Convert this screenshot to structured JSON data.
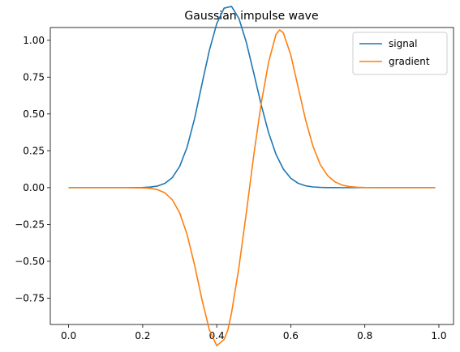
{
  "chart_data": {
    "type": "line",
    "title": "Gaussian impulse wave",
    "xlabel": "",
    "ylabel": "",
    "xlim": [
      -0.0495,
      1.0395
    ],
    "ylim": [
      -0.9288,
      1.0866
    ],
    "xticks": [
      0.0,
      0.2,
      0.4,
      0.6,
      0.8,
      1.0
    ],
    "xtick_labels": [
      "0.0",
      "0.2",
      "0.4",
      "0.6",
      "0.8",
      "1.0"
    ],
    "yticks": [
      1.0,
      0.75,
      0.5,
      0.25,
      0.0,
      -0.25,
      -0.5,
      -0.75
    ],
    "ytick_labels": [
      "1.00",
      "0.75",
      "0.50",
      "0.25",
      "0.00",
      "−0.25",
      "−0.50",
      "−0.75"
    ],
    "grid": false,
    "legend_position": "top-right",
    "series": [
      {
        "name": "signal",
        "color": "#1f77b4",
        "x": [
          0.0,
          0.05,
          0.1,
          0.15,
          0.2,
          0.22,
          0.24,
          0.26,
          0.28,
          0.3,
          0.32,
          0.34,
          0.36,
          0.38,
          0.4,
          0.42,
          0.44,
          0.46,
          0.48,
          0.5,
          0.52,
          0.54,
          0.56,
          0.58,
          0.6,
          0.62,
          0.64,
          0.66,
          0.68,
          0.7,
          0.72,
          0.74,
          0.76,
          0.78,
          0.8,
          0.85,
          0.9,
          0.95,
          0.99
        ],
        "y": [
          0.0,
          0.0,
          0.0,
          0.0,
          0.0011,
          0.0036,
          0.0107,
          0.0285,
          0.068,
          0.1445,
          0.2747,
          0.4666,
          0.701,
          0.9303,
          1.1125,
          1.2182,
          1.2297,
          1.1478,
          0.9856,
          0.7772,
          0.5633,
          0.3734,
          0.2267,
          0.1256,
          0.0636,
          0.0293,
          0.0124,
          0.0048,
          0.0017,
          0.0005,
          0.0002,
          0.0,
          0.0,
          0.0,
          0.0,
          0.0,
          0.0,
          0.0,
          0.0
        ]
      },
      {
        "name": "gradient",
        "color": "#ff7f0e",
        "x": [
          0.0,
          0.05,
          0.1,
          0.15,
          0.2,
          0.22,
          0.24,
          0.26,
          0.28,
          0.3,
          0.32,
          0.34,
          0.36,
          0.38,
          0.4,
          0.42,
          0.43,
          0.44,
          0.46,
          0.48,
          0.5,
          0.52,
          0.54,
          0.56,
          0.57,
          0.58,
          0.6,
          0.62,
          0.64,
          0.66,
          0.68,
          0.7,
          0.72,
          0.74,
          0.76,
          0.78,
          0.8,
          0.85,
          0.9,
          0.95,
          0.99
        ],
        "y": [
          0.0,
          0.0,
          0.0,
          0.0,
          -0.0015,
          -0.0047,
          -0.0135,
          -0.0352,
          -0.0822,
          -0.172,
          -0.3181,
          -0.5235,
          -0.758,
          -0.965,
          -1.073,
          -1.03,
          -0.966,
          -0.85,
          -0.54,
          -0.17,
          0.22,
          0.57,
          0.85,
          1.04,
          1.07,
          1.05,
          0.9,
          0.68,
          0.46,
          0.28,
          0.155,
          0.08,
          0.038,
          0.016,
          0.0065,
          0.0025,
          0.0009,
          0.0,
          0.0,
          0.0,
          0.0
        ]
      }
    ]
  }
}
